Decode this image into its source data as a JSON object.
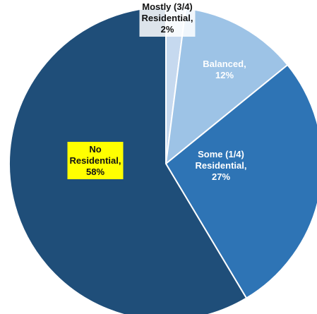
{
  "chart_data": {
    "type": "pie",
    "start_angle_deg": 0,
    "direction": "clockwise",
    "slices": [
      {
        "label": "Mostly (3/4) Residential, 2%",
        "lines": [
          "Mostly (3/4)",
          "Residential,",
          "2%"
        ],
        "value": 2,
        "color": "#c6d9ef",
        "text_color": "#111111",
        "label_bg": "#ffffff"
      },
      {
        "label": "Balanced, 12%",
        "lines": [
          "Balanced,",
          "12%"
        ],
        "value": 12,
        "color": "#9dc3e6",
        "text_color": "#ffffff",
        "label_bg": ""
      },
      {
        "label": "Some (1/4) Residential, 27%",
        "lines": [
          "Some (1/4)",
          "Residential,",
          "27%"
        ],
        "value": 27,
        "color": "#2e74b5",
        "text_color": "#ffffff",
        "label_bg": ""
      },
      {
        "label": "No Residential, 58%",
        "lines": [
          "No",
          "Residential,",
          "58%"
        ],
        "value": 58,
        "color": "#1f4e79",
        "text_color": "#111111",
        "label_bg": "#ffff00"
      }
    ],
    "border_color": "#ffffff"
  }
}
